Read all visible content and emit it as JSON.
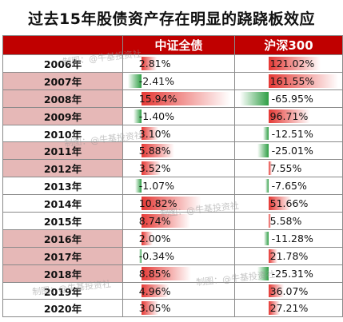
{
  "title": "过去15年股债资产存在明显的跷跷板效应",
  "headers": {
    "year": "",
    "bond": "中证全债",
    "hs300": "沪深300"
  },
  "watermark": "制图：@牛基投资社",
  "colors": {
    "header_bg": "#c00000",
    "highlight_row": "#e6b8b7",
    "pos_bar": "#e53935",
    "neg_bar": "#2e9e44"
  },
  "chart_data": {
    "type": "table",
    "columns": [
      "中证全债",
      "沪深300"
    ],
    "rows": [
      {
        "year": "2006年",
        "bond": "2.81%",
        "bond_v": 2.81,
        "hs": "121.02%",
        "hs_v": 121.02,
        "hl": false
      },
      {
        "year": "2007年",
        "bond": "-2.41%",
        "bond_v": -2.41,
        "hs": "161.55%",
        "hs_v": 161.55,
        "hl": true
      },
      {
        "year": "2008年",
        "bond": "15.94%",
        "bond_v": 15.94,
        "hs": "-65.95%",
        "hs_v": -65.95,
        "hl": true
      },
      {
        "year": "2009年",
        "bond": "-1.40%",
        "bond_v": -1.4,
        "hs": "96.71%",
        "hs_v": 96.71,
        "hl": true
      },
      {
        "year": "2010年",
        "bond": "3.10%",
        "bond_v": 3.1,
        "hs": "-12.51%",
        "hs_v": -12.51,
        "hl": false
      },
      {
        "year": "2011年",
        "bond": "5.88%",
        "bond_v": 5.88,
        "hs": "-25.01%",
        "hs_v": -25.01,
        "hl": true
      },
      {
        "year": "2012年",
        "bond": "3.52%",
        "bond_v": 3.52,
        "hs": "7.55%",
        "hs_v": 7.55,
        "hl": true
      },
      {
        "year": "2013年",
        "bond": "-1.07%",
        "bond_v": -1.07,
        "hs": "-7.65%",
        "hs_v": -7.65,
        "hl": false
      },
      {
        "year": "2014年",
        "bond": "10.82%",
        "bond_v": 10.82,
        "hs": "51.66%",
        "hs_v": 51.66,
        "hl": false
      },
      {
        "year": "2015年",
        "bond": "8.74%",
        "bond_v": 8.74,
        "hs": "5.58%",
        "hs_v": 5.58,
        "hl": false
      },
      {
        "year": "2016年",
        "bond": "2.00%",
        "bond_v": 2.0,
        "hs": "-11.28%",
        "hs_v": -11.28,
        "hl": true
      },
      {
        "year": "2017年",
        "bond": "-0.34%",
        "bond_v": -0.34,
        "hs": "21.78%",
        "hs_v": 21.78,
        "hl": true
      },
      {
        "year": "2018年",
        "bond": "8.85%",
        "bond_v": 8.85,
        "hs": "-25.31%",
        "hs_v": -25.31,
        "hl": true
      },
      {
        "year": "2019年",
        "bond": "4.96%",
        "bond_v": 4.96,
        "hs": "36.07%",
        "hs_v": 36.07,
        "hl": false
      },
      {
        "year": "2020年",
        "bond": "3.05%",
        "bond_v": 3.05,
        "hs": "27.21%",
        "hs_v": 27.21,
        "hl": false
      }
    ],
    "bond_range": [
      -2.41,
      15.94
    ],
    "hs_range": [
      -65.95,
      161.55
    ]
  }
}
